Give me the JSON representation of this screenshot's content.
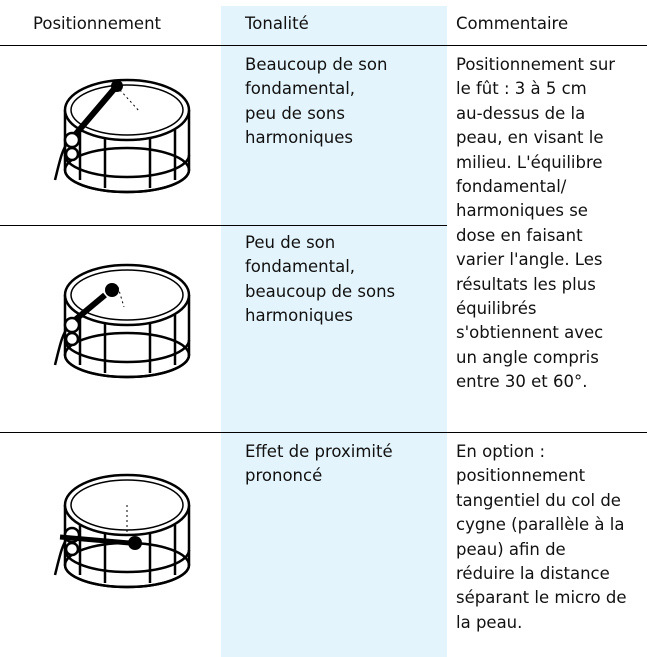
{
  "table": {
    "headers": [
      "Positionnement",
      "Tonalité",
      "Commentaire"
    ],
    "tones": [
      [
        "Beaucoup de son",
        "fondamental,",
        "peu de sons",
        "harmoniques"
      ],
      [
        "Peu de son",
        "fondamental,",
        "beaucoup de sons",
        "harmoniques"
      ],
      [
        "Effet de proximité",
        "prononcé"
      ]
    ],
    "comments": [
      [
        "Positionnement sur",
        "le fût : 3 à 5 cm",
        "au-dessus de la",
        "peau, en visant le",
        "milieu. L'équilibre",
        "fondamental/",
        "harmoniques se",
        "dose en faisant",
        "varier l'angle. Les",
        "résultats les plus",
        "équilibrés",
        "s'obtiennent avec",
        "un angle compris",
        "entre 30 et 60°."
      ],
      [
        "En option :",
        "positionnement",
        "tangentiel du col de",
        "cygne (parallèle à la",
        "peau) afin de",
        "réduire la distance",
        "séparant le micro de",
        "la peau."
      ]
    ]
  }
}
